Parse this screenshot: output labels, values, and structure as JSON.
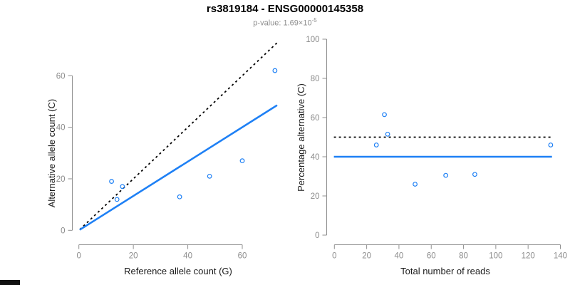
{
  "header": {
    "title": "rs3819184 - ENSG00000145358",
    "subtitle_prefix": "p-value: 1.69×10",
    "subtitle_exponent": "-5"
  },
  "colors": {
    "accent_blue": "#1E80F5",
    "dashed_black": "#000000",
    "tick_label": "#8c8c8c",
    "axis_line": "#909090",
    "axis_title": "#1a1a1a",
    "title": "#000000",
    "subtitle": "#8c8c8c",
    "corner_bar": "#111111",
    "background": "#ffffff"
  },
  "chart_data": [
    {
      "type": "scatter",
      "xlabel": "Reference allele count (G)",
      "ylabel": "Alternative allele count (C)",
      "x_ticks": [
        0,
        20,
        40,
        60
      ],
      "y_ticks": [
        0,
        20,
        40,
        60
      ],
      "xlim": [
        0,
        73
      ],
      "ylim": [
        0,
        73
      ],
      "grid": false,
      "legend": null,
      "points": [
        [
          12,
          19
        ],
        [
          16,
          17
        ],
        [
          14,
          12
        ],
        [
          37,
          13
        ],
        [
          48,
          21
        ],
        [
          60,
          27
        ],
        [
          72,
          62
        ]
      ],
      "lines": [
        {
          "name": "identity-line",
          "style": "dashed",
          "color": "black",
          "slope": 1,
          "intercept": 0
        },
        {
          "name": "regression-line",
          "style": "solid",
          "color": "blue",
          "slope": 0.667,
          "intercept": 0
        }
      ]
    },
    {
      "type": "scatter",
      "xlabel": "Total number of reads",
      "ylabel": "Percentage alternative (C)",
      "x_ticks": [
        0,
        20,
        40,
        60,
        80,
        100,
        120,
        140
      ],
      "y_ticks": [
        0,
        20,
        40,
        60,
        80,
        100
      ],
      "xlim": [
        0,
        140
      ],
      "ylim": [
        0,
        100
      ],
      "grid": false,
      "legend": null,
      "points": [
        [
          26,
          46
        ],
        [
          31,
          61.5
        ],
        [
          33,
          51.5
        ],
        [
          50,
          26
        ],
        [
          69,
          30.5
        ],
        [
          87,
          31
        ],
        [
          134,
          46
        ]
      ],
      "lines": [
        {
          "name": "null-percentage-line",
          "style": "dashed",
          "color": "black",
          "hline": 50
        },
        {
          "name": "estimate-percentage-line",
          "style": "solid",
          "color": "blue",
          "hline": 40
        }
      ]
    }
  ]
}
